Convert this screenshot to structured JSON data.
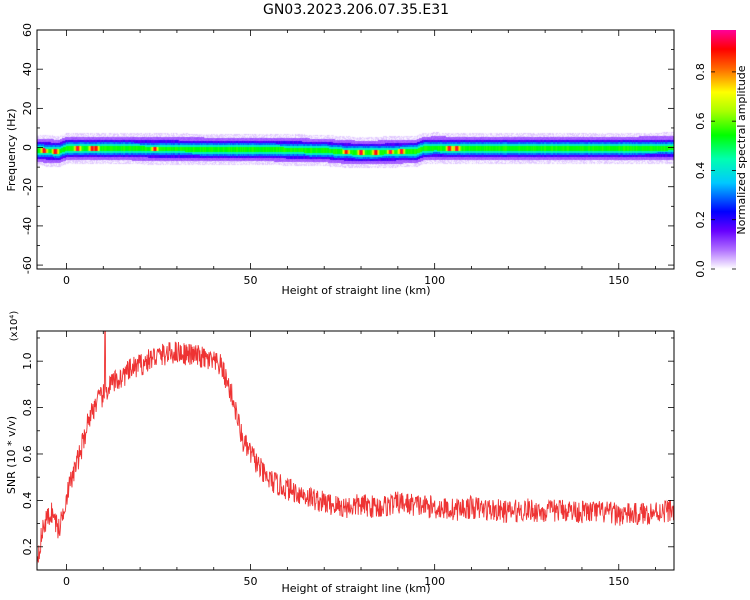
{
  "title": "GN03.2023.206.07.35.E31",
  "chart_data": [
    {
      "type": "heatmap",
      "xlabel": "Height of straight line (km)",
      "ylabel": "Frequency (Hz)",
      "xlim": [
        -8,
        165
      ],
      "ylim": [
        -62,
        60
      ],
      "xticks": [
        0,
        50,
        100,
        150
      ],
      "yticks": [
        -60,
        -40,
        -20,
        0,
        20,
        40,
        60
      ],
      "colorbar": {
        "label": "Normalized spectral amplitude",
        "range": [
          0,
          0.97
        ],
        "ticks": [
          "0.0",
          "0.2",
          "0.4",
          "0.6",
          "0.8"
        ],
        "tick_values": [
          0,
          0.2,
          0.4,
          0.6,
          0.8
        ],
        "colormap": [
          "#ffffff",
          "#9900ff",
          "#0000ff",
          "#00ffff",
          "#00ff00",
          "#ffff00",
          "#ff0000",
          "#ff00aa"
        ]
      },
      "band": {
        "x_km": [
          -8,
          -2,
          0,
          10,
          30,
          50,
          60,
          70,
          75,
          80,
          85,
          90,
          95,
          97,
          100,
          110,
          130,
          150,
          165
        ],
        "center_hz": [
          -1.5,
          -2,
          -0.5,
          -0.5,
          -0.8,
          -1,
          -1.2,
          -1.5,
          -2.2,
          -2.5,
          -2.4,
          -2.2,
          -2,
          -0.5,
          -0.3,
          -0.5,
          -0.5,
          -0.4,
          -0.3
        ],
        "half_width_hz": 4
      },
      "hot_spots_km": [
        -6,
        -3,
        3,
        7,
        8,
        24,
        76,
        80,
        84,
        88,
        91,
        104,
        106
      ]
    },
    {
      "type": "line",
      "xlabel": "Height of straight line (km)",
      "ylabel": "SNR (10 * v/v)",
      "y_multiplier": "(x10⁴)",
      "xlim": [
        -8,
        165
      ],
      "ylim": [
        0.1,
        1.13
      ],
      "xticks": [
        0,
        50,
        100,
        150
      ],
      "yticks": [
        0.2,
        0.4,
        0.6,
        0.8,
        1.0
      ],
      "ytick_labels": [
        "0.2",
        "0.4",
        "0.6",
        "0.8",
        "1.0"
      ],
      "series": [
        {
          "color": "#ee3333",
          "x": [
            -8,
            -6,
            -4,
            -2,
            0,
            2,
            4,
            6,
            8,
            10,
            12,
            15,
            18,
            21,
            24,
            27,
            30,
            33,
            36,
            39,
            42,
            45,
            48,
            51,
            54,
            57,
            60,
            65,
            70,
            75,
            80,
            85,
            90,
            95,
            100,
            105,
            110,
            115,
            120,
            125,
            130,
            135,
            140,
            145,
            150,
            155,
            160,
            165
          ],
          "values": [
            0.15,
            0.3,
            0.35,
            0.27,
            0.42,
            0.52,
            0.62,
            0.75,
            0.82,
            0.85,
            0.9,
            0.93,
            0.97,
            0.99,
            1.02,
            1.03,
            1.04,
            1.03,
            1.02,
            1.0,
            0.98,
            0.85,
            0.65,
            0.58,
            0.5,
            0.47,
            0.45,
            0.42,
            0.39,
            0.37,
            0.38,
            0.37,
            0.39,
            0.38,
            0.37,
            0.36,
            0.37,
            0.36,
            0.35,
            0.36,
            0.35,
            0.36,
            0.35,
            0.35,
            0.34,
            0.34,
            0.35,
            0.36
          ]
        }
      ],
      "noise_amplitude": 0.05,
      "spikes": [
        {
          "x": 10.5,
          "y": 1.13
        }
      ]
    }
  ]
}
